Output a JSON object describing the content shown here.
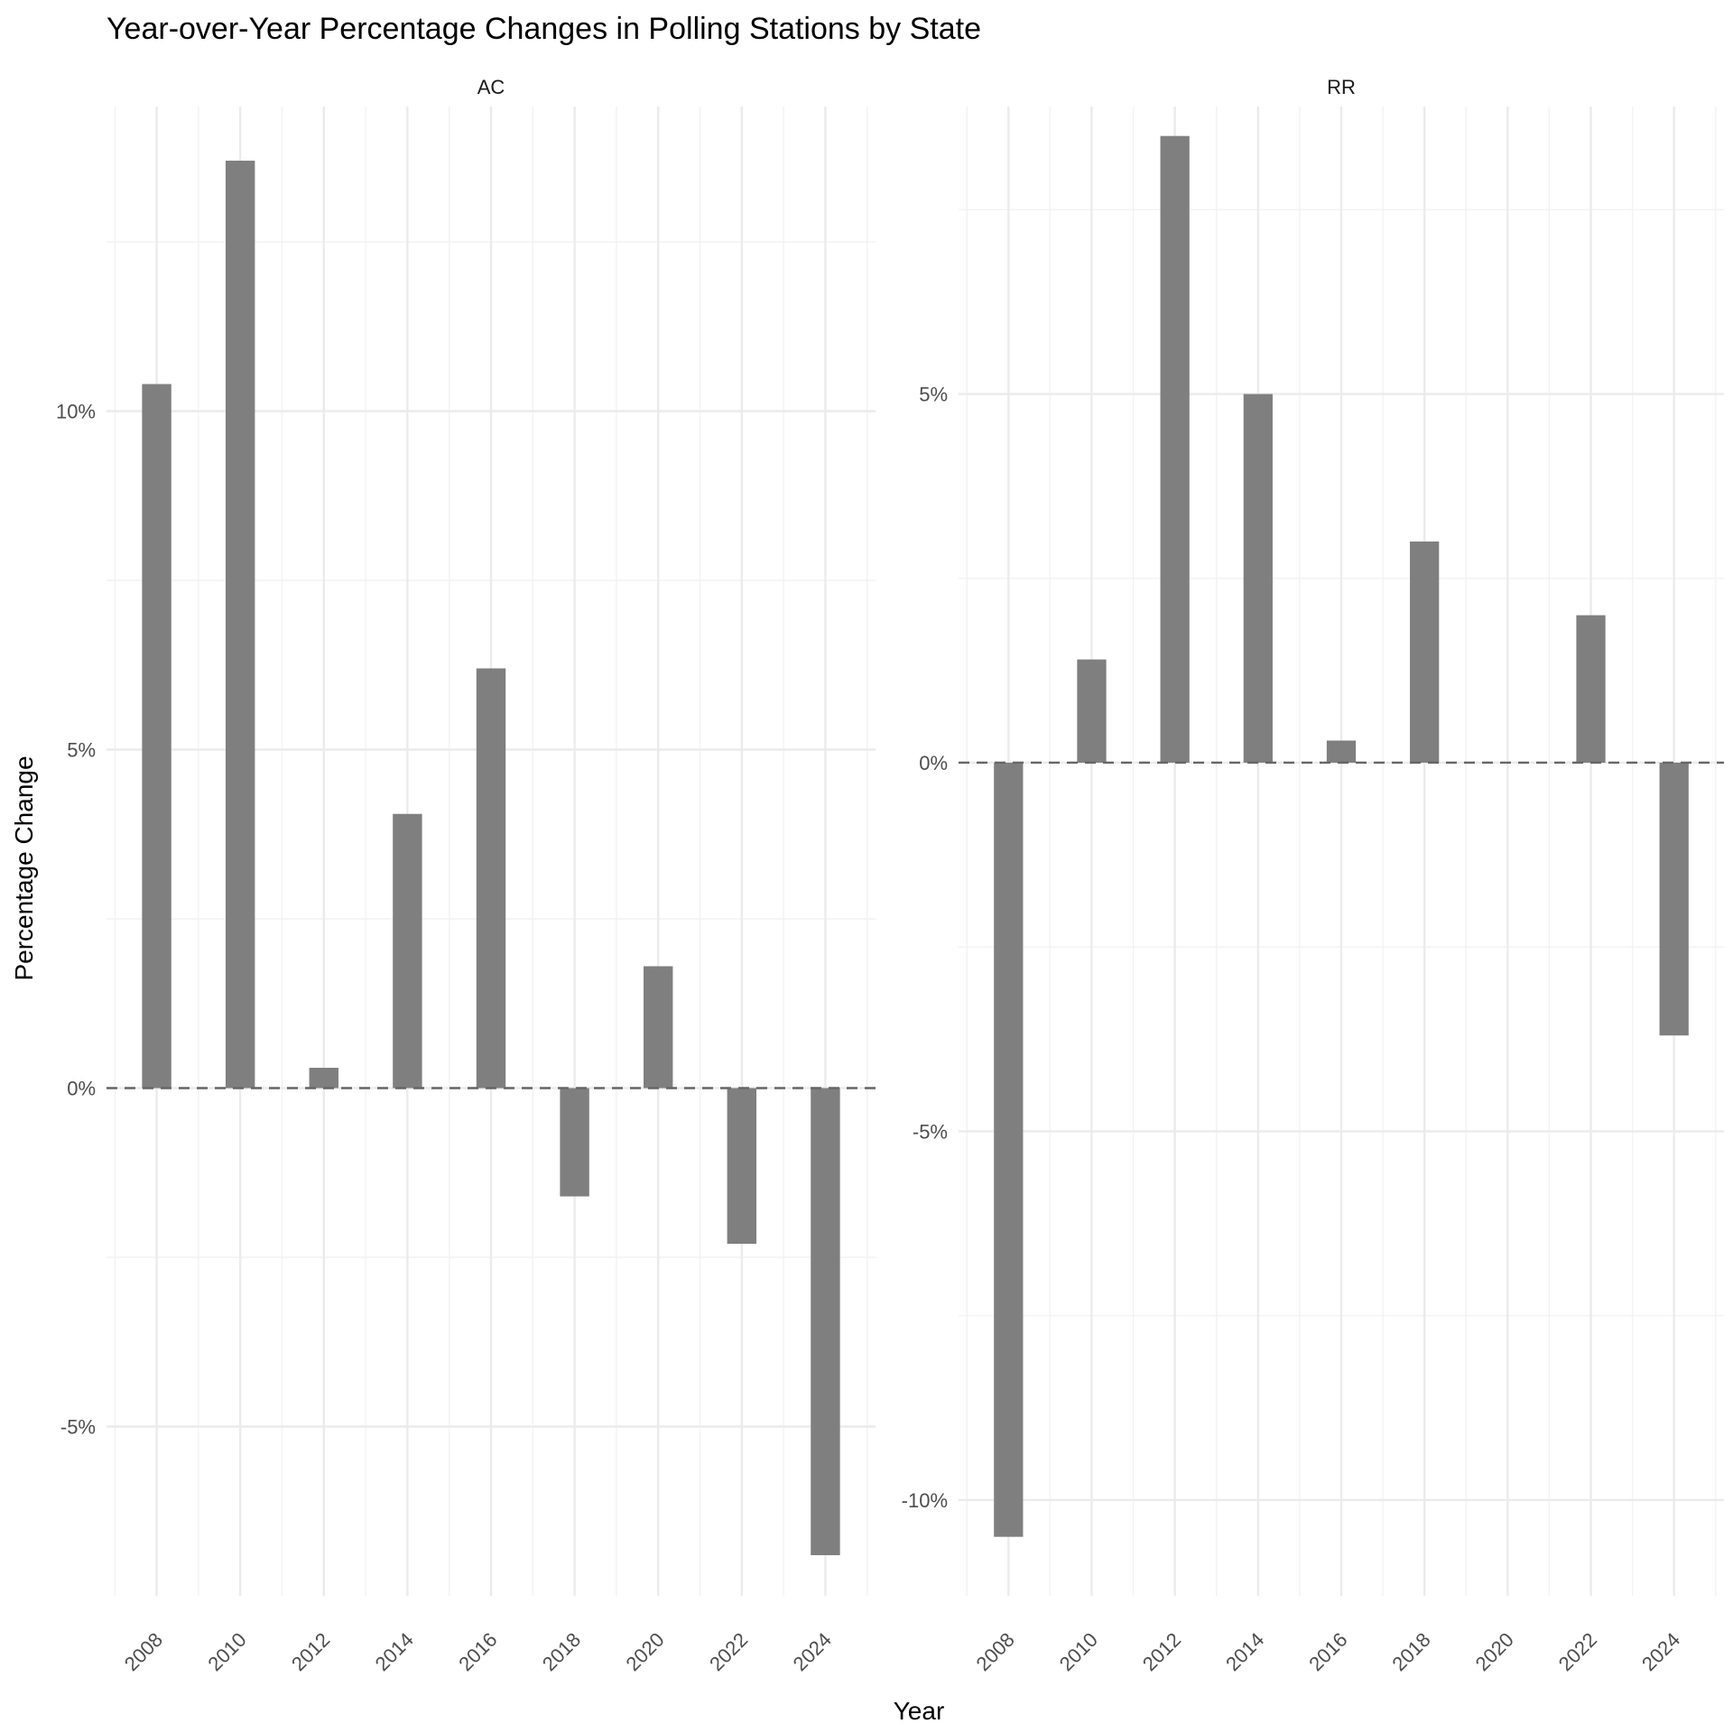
{
  "chart_data": {
    "type": "bar",
    "title": "Year-over-Year Percentage Changes in Polling Stations by State",
    "xlabel": "Year",
    "ylabel": "Percentage Change",
    "categories": [
      "2008",
      "2010",
      "2012",
      "2014",
      "2016",
      "2018",
      "2020",
      "2022",
      "2024"
    ],
    "grid": true,
    "reference_line": {
      "y": 0,
      "style": "dashed"
    },
    "panels": [
      {
        "name": "AC",
        "ylim": [
          -7.5,
          14.5
        ],
        "yticks": [
          -5,
          0,
          5,
          10
        ],
        "ytick_labels": [
          "-5%",
          "0%",
          "5%",
          "10%"
        ],
        "values": [
          10.4,
          13.7,
          0.3,
          4.05,
          6.2,
          -1.6,
          1.8,
          -2.3,
          -6.9
        ]
      },
      {
        "name": "RR",
        "ylim": [
          -11.3,
          8.9
        ],
        "yticks": [
          -10,
          -5,
          0,
          5
        ],
        "ytick_labels": [
          "-10%",
          "-5%",
          "0%",
          "5%"
        ],
        "values": [
          -10.5,
          1.4,
          8.5,
          5.0,
          0.3,
          3.0,
          null,
          2.0,
          -3.7
        ]
      }
    ],
    "colors": {
      "bar": "#7f7f7f",
      "grid": "#ebebeb",
      "zero_line": "#666666"
    }
  }
}
